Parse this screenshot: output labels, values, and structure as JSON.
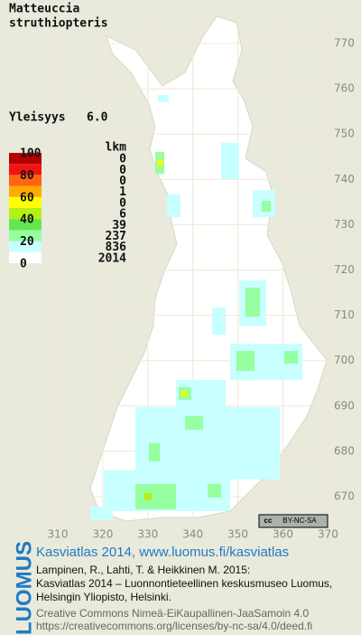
{
  "header": {
    "title_line1": "Matteuccia",
    "title_line2": "struthiopteris"
  },
  "frequency": {
    "label": "Yleisyys",
    "value": "6.0"
  },
  "legend": {
    "header": "lkm",
    "scale_labels": [
      100,
      80,
      60,
      40,
      20,
      0
    ],
    "classes": [
      {
        "color": "#b40000",
        "count": 0
      },
      {
        "color": "#f01414",
        "count": 0
      },
      {
        "color": "#ff6414",
        "count": 0
      },
      {
        "color": "#ffaa00",
        "count": 1
      },
      {
        "color": "#ffff00",
        "count": 0
      },
      {
        "color": "#b4f014",
        "count": 6
      },
      {
        "color": "#64e650",
        "count": 39
      },
      {
        "color": "#96ffa0",
        "count": 237
      },
      {
        "color": "#c8ffff",
        "count": 836
      },
      {
        "color": "#ffffff",
        "count": 2014
      }
    ]
  },
  "map": {
    "y_labels": [
      770,
      760,
      750,
      740,
      730,
      720,
      710,
      700,
      690,
      680,
      670
    ],
    "x_labels": [
      310,
      320,
      330,
      340,
      350,
      360,
      370
    ],
    "license_icon": "cc",
    "license": "BY-NC-SA"
  },
  "footer": {
    "logo": "LUOMUS",
    "title": "Kasviatlas 2014, www.luomus.fi/kasviatlas",
    "citation": [
      "Lampinen, R., Lahti, T. & Heikkinen M. 2015:",
      "Kasviatlas 2014 – Luonnontieteellinen keskusmuseo Luomus,",
      "Helsingin Yliopisto, Helsinki."
    ],
    "license_lines": [
      "Creative Commons Nimeä-EiKaupallinen-JaaSamoin 4.0",
      "https://creativecommons.org/licenses/by-nc-sa/4.0/deed.fi"
    ]
  }
}
